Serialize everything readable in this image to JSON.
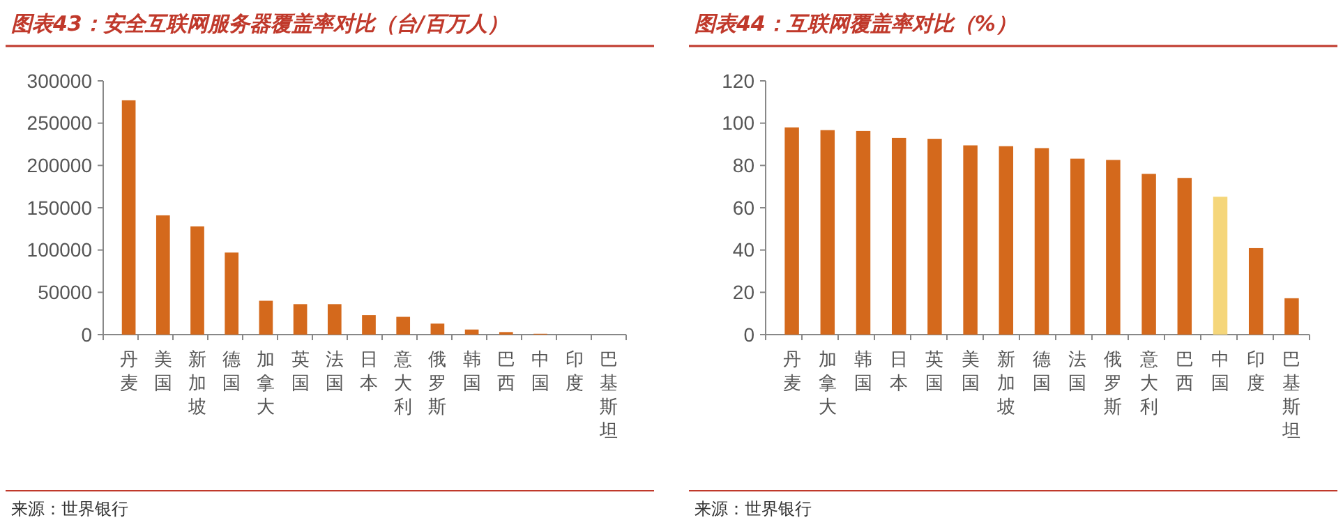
{
  "chart_data": [
    {
      "type": "bar",
      "title": "图表43：安全互联网服务器覆盖率对比（台/百万人）",
      "categories": [
        "丹麦",
        "美国",
        "新加坡",
        "德国",
        "加拿大",
        "英国",
        "法国",
        "日本",
        "意大利",
        "俄罗斯",
        "韩国",
        "巴西",
        "中国",
        "印度",
        "巴基斯坦"
      ],
      "values": [
        277000,
        141000,
        128000,
        97000,
        40000,
        36000,
        36000,
        23000,
        21000,
        13000,
        6000,
        3000,
        1000,
        null,
        null
      ],
      "color": "#d4691c",
      "ylim": [
        0,
        300000
      ],
      "yticks": [
        0,
        50000,
        100000,
        150000,
        200000,
        250000,
        300000
      ],
      "grid": false,
      "annotations": [
        "来源：世界银行"
      ]
    },
    {
      "type": "bar",
      "title": "图表44：互联网覆盖率对比（%）",
      "categories": [
        "丹麦",
        "加拿大",
        "韩国",
        "日本",
        "英国",
        "美国",
        "新加坡",
        "德国",
        "法国",
        "俄罗斯",
        "意大利",
        "巴西",
        "中国",
        "印度",
        "巴基斯坦"
      ],
      "values": [
        98.0,
        96.7,
        96.3,
        93.0,
        92.6,
        89.5,
        89.1,
        88.2,
        83.2,
        82.6,
        76.0,
        74.1,
        65.2,
        40.9,
        17.2
      ],
      "colors": [
        "#d4691c",
        "#d4691c",
        "#d4691c",
        "#d4691c",
        "#d4691c",
        "#d4691c",
        "#d4691c",
        "#d4691c",
        "#d4691c",
        "#d4691c",
        "#d4691c",
        "#d4691c",
        "#f5d67a",
        "#d4691c",
        "#d4691c"
      ],
      "ylim": [
        0,
        120
      ],
      "yticks": [
        0,
        20,
        40,
        60,
        80,
        100,
        120
      ],
      "grid": false,
      "annotations": [
        "来源：世界银行"
      ]
    }
  ]
}
